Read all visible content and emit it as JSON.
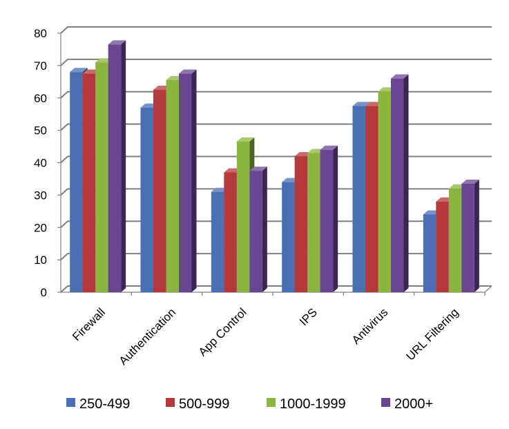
{
  "chart_data": {
    "type": "bar",
    "title": "",
    "xlabel": "",
    "ylabel": "",
    "ylim": [
      0,
      80
    ],
    "y_ticks": [
      0,
      10,
      20,
      30,
      40,
      50,
      60,
      70,
      80
    ],
    "grid": true,
    "three_d": true,
    "legend_position": "bottom",
    "categories": [
      "Firewall",
      "Authentication",
      "App Control",
      "IPS",
      "Antivirus",
      "URL Filtering"
    ],
    "series": [
      {
        "name": "250-499",
        "color": "#4a6fb5",
        "values": [
          68,
          57,
          31,
          34,
          57.5,
          24
        ]
      },
      {
        "name": "500-999",
        "color": "#b5383b",
        "values": [
          67.5,
          62.5,
          37,
          42,
          57.5,
          28
        ]
      },
      {
        "name": "1000-1999",
        "color": "#8bb540",
        "values": [
          71,
          65.5,
          46.5,
          43,
          62,
          32
        ]
      },
      {
        "name": "2000+",
        "color": "#6a4591",
        "values": [
          76.5,
          67.5,
          37.5,
          44,
          66,
          33.5
        ]
      }
    ]
  }
}
